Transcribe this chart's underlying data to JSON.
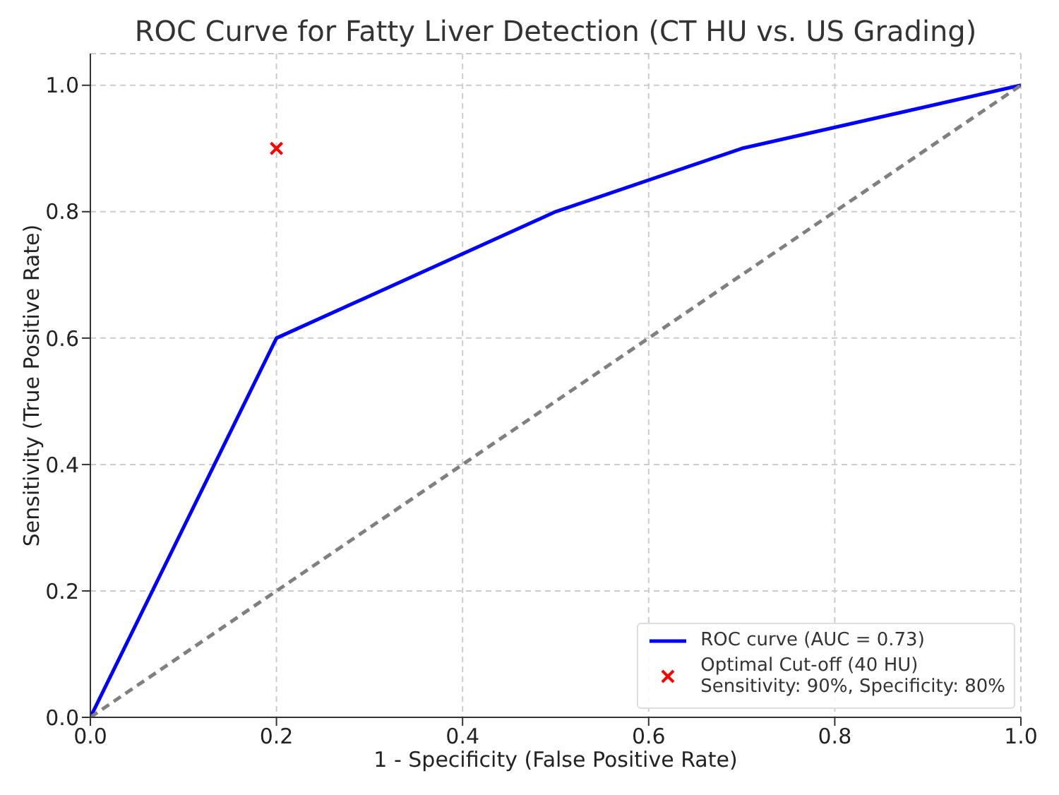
{
  "chart_data": {
    "type": "line",
    "title": "ROC Curve for Fatty Liver Detection (CT HU vs. US Grading)",
    "xlabel": "1 - Specificity (False Positive Rate)",
    "ylabel": "Sensitivity (True Positive Rate)",
    "series": [
      {
        "name": "ROC curve (AUC = 0.73)",
        "color": "#0000ff",
        "line_style": "solid",
        "marker": "none",
        "x": [
          0,
          0.2,
          0.5,
          0.7,
          1
        ],
        "values": [
          0,
          0.6,
          0.8,
          0.9,
          1
        ]
      },
      {
        "color": "#808080",
        "line_style": "dashed",
        "marker": "none",
        "x": [
          0,
          1
        ],
        "values": [
          0,
          1
        ]
      },
      {
        "name": "Optimal Cut-off (40 HU)\nSensitivity: 90%, Specificity: 80%",
        "type": "scatter",
        "color": "#ff0000",
        "marker": "cross",
        "x": [
          0.2
        ],
        "values": [
          0.9
        ]
      }
    ],
    "xlim": [
      0,
      1
    ],
    "ylim": [
      0,
      1.05
    ],
    "xticks": [
      {
        "value": 0,
        "label": "0.0"
      },
      {
        "value": 0.2,
        "label": "0.2"
      },
      {
        "value": 0.4,
        "label": "0.4"
      },
      {
        "value": 0.6,
        "label": "0.6"
      },
      {
        "value": 0.8,
        "label": "0.8"
      },
      {
        "value": 1,
        "label": "1.0"
      }
    ],
    "yticks": [
      {
        "value": 0,
        "label": "0.0"
      },
      {
        "value": 0.2,
        "label": "0.2"
      },
      {
        "value": 0.4,
        "label": "0.4"
      },
      {
        "value": 0.6,
        "label": "0.6"
      },
      {
        "value": 0.8,
        "label": "0.8"
      },
      {
        "value": 1,
        "label": "1.0"
      }
    ],
    "grid": true,
    "legend": "bottom right"
  }
}
